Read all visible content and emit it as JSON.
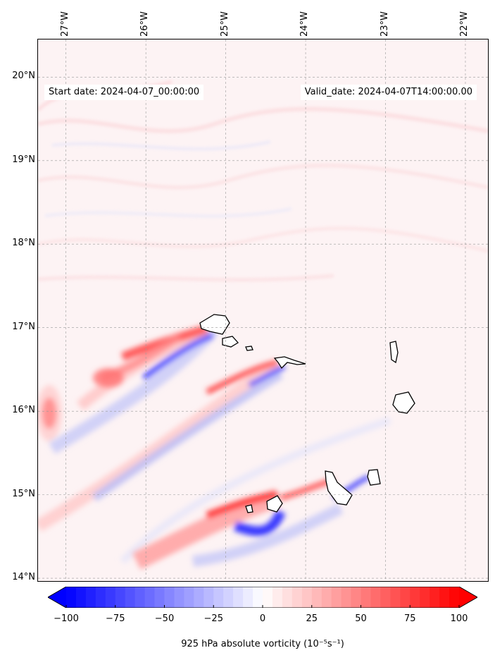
{
  "header": {
    "start_date": "Start date: 2024-04-07_00:00:00",
    "valid_date": "Valid_date: 2024-04-07T14:00:00.00"
  },
  "map": {
    "lon_range": [
      -27.35,
      -21.7
    ],
    "lat_range": [
      13.95,
      20.45
    ],
    "lon_ticks": [
      "27°W",
      "26°W",
      "25°W",
      "24°W",
      "23°W",
      "22°W"
    ],
    "lat_ticks": [
      "20°N",
      "19°N",
      "18°N",
      "17°N",
      "16°N",
      "15°N",
      "14°N"
    ],
    "lon_tick_values": [
      -27,
      -26,
      -25,
      -24,
      -23,
      -22
    ],
    "lat_tick_values": [
      20,
      19,
      18,
      17,
      16,
      15,
      14
    ],
    "gridlines": true,
    "colors": {
      "positive": "#ff0000",
      "negative": "#0000ff",
      "background": "#fdf3f4"
    }
  },
  "colorbar": {
    "ticks": [
      "−100",
      "−75",
      "−50",
      "−25",
      "0",
      "25",
      "50",
      "75",
      "100"
    ],
    "tick_values": [
      -100,
      -75,
      -50,
      -25,
      0,
      25,
      50,
      75,
      100
    ],
    "range": [
      -100,
      100
    ],
    "label": "925 hPa absolute vorticity (10⁻⁵s⁻¹)",
    "extend": "both",
    "cmap": "bwr"
  }
}
